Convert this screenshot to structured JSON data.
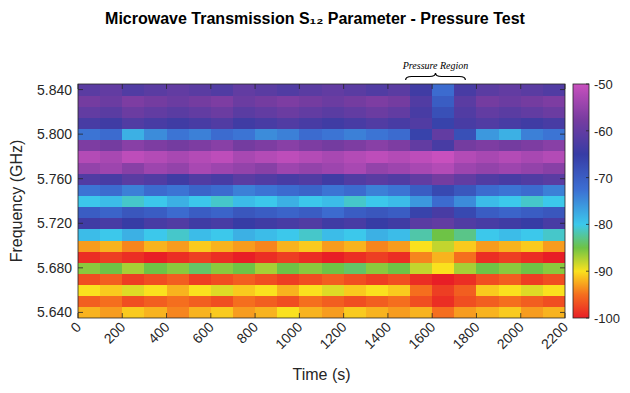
{
  "chart_data": {
    "type": "heatmap",
    "title": "Microwave Transmission S₁₂ Parameter - Pressure Test",
    "x_label": "Time (s)",
    "y_label": "Frequency (GHz)",
    "x": [
      50,
      150,
      250,
      350,
      450,
      550,
      650,
      750,
      850,
      950,
      1050,
      1150,
      1250,
      1350,
      1450,
      1550,
      1650,
      1750,
      1850,
      1950,
      2050,
      2150
    ],
    "y": [
      5.64,
      5.65,
      5.66,
      5.67,
      5.68,
      5.69,
      5.7,
      5.71,
      5.72,
      5.73,
      5.74,
      5.75,
      5.76,
      5.77,
      5.78,
      5.79,
      5.8,
      5.81,
      5.82,
      5.83,
      5.84
    ],
    "values": [
      [
        -92,
        -93,
        -91,
        -92,
        -94,
        -92,
        -91,
        -93,
        -92,
        -90,
        -92,
        -93,
        -91,
        -92,
        -93,
        -92,
        -95,
        -93,
        -92,
        -91,
        -93,
        -92
      ],
      [
        -96,
        -95,
        -97,
        -96,
        -95,
        -96,
        -97,
        -95,
        -96,
        -97,
        -95,
        -96,
        -97,
        -96,
        -95,
        -97,
        -99,
        -97,
        -96,
        -95,
        -96,
        -97
      ],
      [
        -90,
        -91,
        -89,
        -90,
        -92,
        -90,
        -89,
        -91,
        -90,
        -92,
        -90,
        -89,
        -91,
        -90,
        -91,
        -95,
        -98,
        -96,
        -91,
        -90,
        -89,
        -90
      ],
      [
        -97,
        -96,
        -98,
        -97,
        -96,
        -98,
        -97,
        -96,
        -97,
        -98,
        -97,
        -96,
        -97,
        -98,
        -97,
        -99,
        -100,
        -99,
        -97,
        -96,
        -98,
        -97
      ],
      [
        -86,
        -85,
        -87,
        -85,
        -86,
        -84,
        -86,
        -85,
        -87,
        -85,
        -86,
        -85,
        -84,
        -86,
        -85,
        -88,
        -90,
        -87,
        -85,
        -86,
        -85,
        -86
      ],
      [
        -99,
        -98,
        -99,
        -100,
        -99,
        -98,
        -99,
        -100,
        -99,
        -98,
        -99,
        -100,
        -99,
        -98,
        -99,
        -94,
        -92,
        -95,
        -99,
        -98,
        -99,
        -100
      ],
      [
        -93,
        -92,
        -94,
        -92,
        -93,
        -91,
        -92,
        -93,
        -94,
        -92,
        -91,
        -93,
        -92,
        -94,
        -93,
        -90,
        -88,
        -91,
        -93,
        -92,
        -91,
        -93
      ],
      [
        -79,
        -80,
        -78,
        -80,
        -81,
        -79,
        -80,
        -78,
        -79,
        -80,
        -81,
        -79,
        -80,
        -78,
        -79,
        -82,
        -85,
        -83,
        -80,
        -79,
        -80,
        -81
      ],
      [
        -64,
        -63,
        -65,
        -63,
        -62,
        -64,
        -63,
        -65,
        -64,
        -63,
        -62,
        -64,
        -63,
        -65,
        -64,
        -61,
        -60,
        -62,
        -63,
        -64,
        -65,
        -63
      ],
      [
        -70,
        -71,
        -69,
        -70,
        -72,
        -70,
        -71,
        -69,
        -70,
        -71,
        -70,
        -72,
        -70,
        -69,
        -70,
        -66,
        -63,
        -67,
        -70,
        -71,
        -70,
        -69
      ],
      [
        -80,
        -79,
        -81,
        -80,
        -78,
        -80,
        -81,
        -79,
        -80,
        -78,
        -80,
        -79,
        -81,
        -80,
        -79,
        -76,
        -72,
        -75,
        -79,
        -80,
        -81,
        -80
      ],
      [
        -73,
        -72,
        -74,
        -72,
        -73,
        -71,
        -72,
        -74,
        -73,
        -72,
        -71,
        -73,
        -72,
        -74,
        -73,
        -70,
        -67,
        -69,
        -72,
        -73,
        -72,
        -74
      ],
      [
        -62,
        -63,
        -61,
        -62,
        -64,
        -62,
        -63,
        -61,
        -62,
        -63,
        -62,
        -64,
        -62,
        -61,
        -62,
        -60,
        -58,
        -60,
        -62,
        -63,
        -62,
        -61
      ],
      [
        -55,
        -54,
        -56,
        -54,
        -55,
        -53,
        -54,
        -55,
        -56,
        -54,
        -55,
        -54,
        -53,
        -55,
        -54,
        -53,
        -52,
        -54,
        -55,
        -54,
        -55,
        -56
      ],
      [
        -52,
        -53,
        -51,
        -52,
        -53,
        -52,
        -51,
        -53,
        -52,
        -51,
        -52,
        -53,
        -52,
        -51,
        -52,
        -51,
        -50,
        -52,
        -53,
        -52,
        -53,
        -52
      ],
      [
        -57,
        -58,
        -56,
        -57,
        -58,
        -57,
        -56,
        -58,
        -57,
        -56,
        -57,
        -58,
        -57,
        -56,
        -57,
        -60,
        -63,
        -58,
        -57,
        -58,
        -57,
        -56
      ],
      [
        -73,
        -72,
        -78,
        -75,
        -73,
        -74,
        -72,
        -73,
        -75,
        -74,
        -72,
        -73,
        -74,
        -73,
        -72,
        -66,
        -60,
        -68,
        -76,
        -78,
        -74,
        -73
      ],
      [
        -63,
        -64,
        -62,
        -63,
        -64,
        -63,
        -62,
        -64,
        -63,
        -62,
        -63,
        -64,
        -63,
        -62,
        -63,
        -62,
        -66,
        -63,
        -62,
        -63,
        -64,
        -63
      ],
      [
        -60,
        -61,
        -59,
        -60,
        -61,
        -60,
        -59,
        -61,
        -60,
        -59,
        -60,
        -61,
        -60,
        -59,
        -60,
        -63,
        -68,
        -62,
        -60,
        -61,
        -60,
        -59
      ],
      [
        -58,
        -59,
        -57,
        -58,
        -59,
        -58,
        -57,
        -59,
        -58,
        -57,
        -58,
        -59,
        -58,
        -57,
        -58,
        -62,
        -70,
        -61,
        -58,
        -59,
        -58,
        -57
      ],
      [
        -61,
        -60,
        -62,
        -61,
        -60,
        -61,
        -62,
        -60,
        -61,
        -62,
        -61,
        -60,
        -61,
        -62,
        -61,
        -64,
        -72,
        -63,
        -61,
        -60,
        -61,
        -62
      ]
    ],
    "xlim": [
      0,
      2200
    ],
    "ylim": [
      5.635,
      5.845
    ],
    "xticks": [
      0,
      200,
      400,
      600,
      800,
      1000,
      1200,
      1400,
      1600,
      1800,
      2000,
      2200
    ],
    "yticks": [
      {
        "value": 5.64,
        "label": "5.640"
      },
      {
        "value": 5.68,
        "label": "5.680"
      },
      {
        "value": 5.72,
        "label": "5.720"
      },
      {
        "value": 5.76,
        "label": "5.760"
      },
      {
        "value": 5.8,
        "label": "5.800"
      },
      {
        "value": 5.84,
        "label": "5.840"
      }
    ],
    "colorbar": {
      "range": [
        -100,
        -50
      ],
      "ticks": [
        -100,
        -90,
        -80,
        -70,
        -60,
        -50
      ]
    },
    "annotation": {
      "text": "Pressure Region",
      "x": [
        1480,
        1750
      ]
    }
  }
}
